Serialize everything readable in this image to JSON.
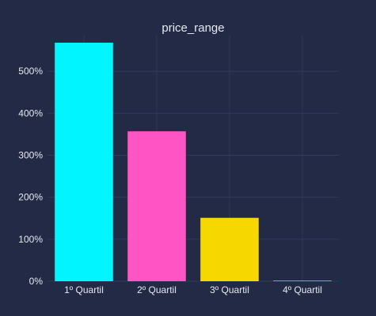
{
  "chart_data": {
    "type": "bar",
    "title": "price_range",
    "xlabel": "",
    "ylabel": "",
    "categories": [
      "1º Quartil",
      "2º Quartil",
      "3º Quartil",
      "4º Quartil"
    ],
    "values": [
      5.68,
      3.57,
      1.51,
      0.01
    ],
    "bar_colors": [
      "#00f5ff",
      "#ff55c4",
      "#f6d800",
      "#1ee34a"
    ],
    "y_ticks": [
      0,
      1,
      2,
      3,
      4,
      5
    ],
    "y_tick_labels": [
      "0%",
      "100%",
      "200%",
      "300%",
      "400%",
      "500%"
    ],
    "ylim": [
      0,
      5.85
    ],
    "grid": true,
    "legend": "none"
  },
  "colors": {
    "background": "#222a45",
    "grid": "#2f3a5c",
    "text": "#e6e9f2"
  }
}
